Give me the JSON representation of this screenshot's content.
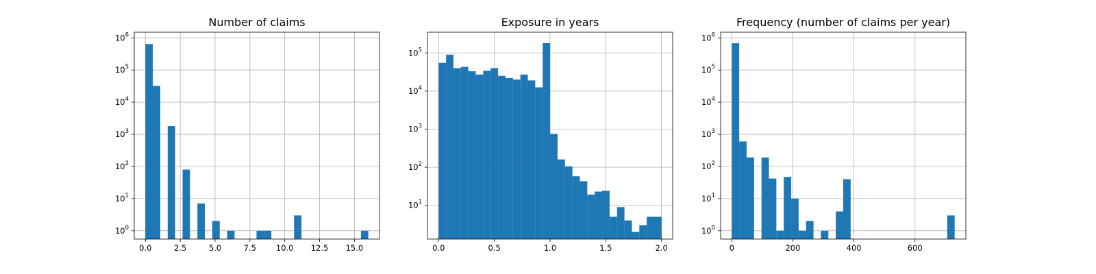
{
  "chart_data": [
    {
      "type": "bar",
      "title": "Number of claims",
      "xlabel": "",
      "ylabel": "",
      "yscale": "log",
      "grid": true,
      "color": "#1f77b4",
      "xlim": [
        -0.8,
        16.8
      ],
      "ylim": [
        0.55,
        1500000
      ],
      "xticks": [
        0,
        2.5,
        5,
        7.5,
        10,
        12.5,
        15
      ],
      "xtick_labels": [
        "0.0",
        "2.5",
        "5.0",
        "7.5",
        "10.0",
        "12.5",
        "15.0"
      ],
      "yticks": [
        1,
        10,
        100,
        1000,
        10000,
        100000,
        1000000
      ],
      "ytick_exponents": [
        "0",
        "1",
        "2",
        "3",
        "4",
        "5",
        "6"
      ],
      "bins": [
        {
          "x0": 0.0,
          "x1": 0.533,
          "count": 640000
        },
        {
          "x0": 0.533,
          "x1": 1.067,
          "count": 32000
        },
        {
          "x0": 1.6,
          "x1": 2.133,
          "count": 1800
        },
        {
          "x0": 2.667,
          "x1": 3.2,
          "count": 80
        },
        {
          "x0": 3.733,
          "x1": 4.267,
          "count": 7
        },
        {
          "x0": 4.8,
          "x1": 5.333,
          "count": 2
        },
        {
          "x0": 5.867,
          "x1": 6.4,
          "count": 1
        },
        {
          "x0": 7.973,
          "x1": 8.507,
          "count": 1
        },
        {
          "x0": 8.507,
          "x1": 9.04,
          "count": 1
        },
        {
          "x0": 10.667,
          "x1": 11.2,
          "count": 3
        },
        {
          "x0": 15.467,
          "x1": 16.0,
          "count": 1
        }
      ]
    },
    {
      "type": "bar",
      "title": "Exposure in years",
      "xlabel": "",
      "ylabel": "",
      "yscale": "log",
      "grid": true,
      "color": "#1f77b4",
      "xlim": [
        -0.1,
        2.1
      ],
      "ylim": [
        1.3,
        350000
      ],
      "xticks": [
        0,
        0.5,
        1,
        1.5,
        2
      ],
      "xtick_labels": [
        "0.0",
        "0.5",
        "1.0",
        "1.5",
        "2.0"
      ],
      "yticks": [
        10,
        100,
        1000,
        10000,
        100000
      ],
      "ytick_exponents": [
        "1",
        "2",
        "3",
        "4",
        "5"
      ],
      "bin_start": 0.0,
      "bin_width": 0.0667,
      "counts": [
        55000,
        90000,
        40000,
        43000,
        33000,
        27000,
        34000,
        40000,
        25000,
        22000,
        20000,
        27000,
        19000,
        12500,
        180000,
        750,
        160,
        105,
        58,
        43,
        19,
        23,
        24,
        5,
        9,
        4,
        2,
        3,
        5,
        5
      ]
    },
    {
      "type": "bar",
      "title": "Frequency (number of claims per year)",
      "xlabel": "",
      "ylabel": "",
      "yscale": "log",
      "grid": true,
      "color": "#1f77b4",
      "xlim": [
        -36.5,
        766.5
      ],
      "ylim": [
        0.55,
        1500000
      ],
      "xticks": [
        0,
        200,
        400,
        600
      ],
      "xtick_labels": [
        "0",
        "200",
        "400",
        "600"
      ],
      "yticks": [
        1,
        10,
        100,
        1000,
        10000,
        100000,
        1000000
      ],
      "ytick_exponents": [
        "0",
        "1",
        "2",
        "3",
        "4",
        "5",
        "6"
      ],
      "bin_start": 0,
      "bin_width": 24.33,
      "counts": [
        680000,
        600,
        190,
        0,
        190,
        42,
        1,
        47,
        10,
        1,
        2,
        0,
        1,
        0,
        4,
        40,
        0,
        0,
        0,
        0,
        0,
        0,
        0,
        0,
        0,
        0,
        0,
        0,
        0,
        3
      ]
    }
  ]
}
